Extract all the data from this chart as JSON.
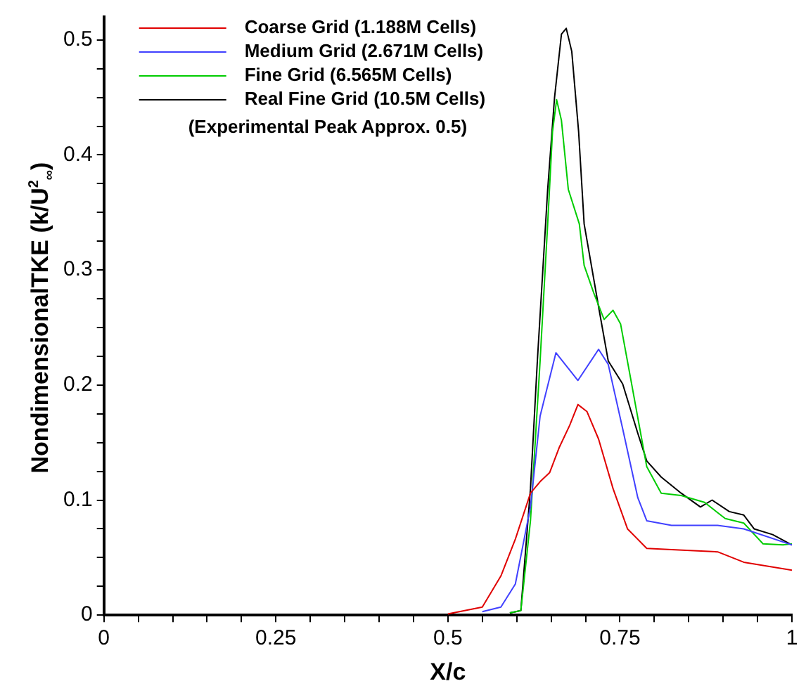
{
  "chart_data": {
    "type": "line",
    "xlabel": "X/c",
    "ylabel": "NondimensionalTKE (k/U$^{2}$$_{∞}$)",
    "xlim": [
      0,
      1
    ],
    "ylim": [
      0,
      0.52
    ],
    "xticks": [
      0,
      {
        "value": 0.05,
        "label": null
      },
      {
        "value": 0.1,
        "label": null
      },
      {
        "value": 0.15,
        "label": null
      },
      {
        "value": 0.2,
        "label": null
      },
      0.25,
      {
        "value": 0.3,
        "label": null
      },
      {
        "value": 0.35,
        "label": null
      },
      {
        "value": 0.4,
        "label": null
      },
      {
        "value": 0.45,
        "label": null
      },
      0.5,
      {
        "value": 0.55,
        "label": null
      },
      {
        "value": 0.6,
        "label": null
      },
      {
        "value": 0.65,
        "label": null
      },
      {
        "value": 0.7,
        "label": null
      },
      0.75,
      {
        "value": 0.8,
        "label": null
      },
      {
        "value": 0.85,
        "label": null
      },
      {
        "value": 0.9,
        "label": null
      },
      {
        "value": 0.95,
        "label": null
      },
      1
    ],
    "yticks": [
      0,
      {
        "value": 0.025,
        "label": null
      },
      {
        "value": 0.05,
        "label": null
      },
      {
        "value": 0.075,
        "label": null
      },
      0.1,
      {
        "value": 0.125,
        "label": null
      },
      {
        "value": 0.15,
        "label": null
      },
      {
        "value": 0.175,
        "label": null
      },
      0.2,
      {
        "value": 0.225,
        "label": null
      },
      {
        "value": 0.25,
        "label": null
      },
      {
        "value": 0.275,
        "label": null
      },
      0.3,
      {
        "value": 0.325,
        "label": null
      },
      {
        "value": 0.35,
        "label": null
      },
      {
        "value": 0.375,
        "label": null
      },
      0.4,
      {
        "value": 0.425,
        "label": null
      },
      {
        "value": 0.45,
        "label": null
      },
      {
        "value": 0.475,
        "label": null
      },
      0.5
    ],
    "grid": false,
    "legend": "top left",
    "marker": "none",
    "line_style": "solid",
    "annotations": [
      "(Experimental Peak Approx. 0.5)"
    ],
    "series": [
      {
        "name": "Coarse Grid (1.188M Cells)",
        "color": "#e00000",
        "x": [
          0.5,
          0.55,
          0.577,
          0.598,
          0.62,
          0.634,
          0.648,
          0.662,
          0.677,
          0.689,
          0.702,
          0.719,
          0.74,
          0.761,
          0.789,
          0.825,
          0.892,
          0.93,
          1
        ],
        "values": [
          0.001,
          0.007,
          0.034,
          0.066,
          0.106,
          0.116,
          0.124,
          0.146,
          0.165,
          0.183,
          0.177,
          0.153,
          0.11,
          0.075,
          0.058,
          0.057,
          0.055,
          0.046,
          0.039
        ]
      },
      {
        "name": "Medium Grid (2.671M Cells)",
        "color": "#4040ff",
        "x": [
          0.55,
          0.577,
          0.598,
          0.62,
          0.634,
          0.657,
          0.689,
          0.719,
          0.733,
          0.754,
          0.776,
          0.789,
          0.825,
          0.892,
          0.93,
          1
        ],
        "values": [
          0.003,
          0.007,
          0.027,
          0.094,
          0.173,
          0.228,
          0.204,
          0.231,
          0.218,
          0.162,
          0.102,
          0.082,
          0.078,
          0.078,
          0.075,
          0.061
        ]
      },
      {
        "name": "Fine Grid (6.565M Cells)",
        "color": "#00cc00",
        "x": [
          0.59,
          0.606,
          0.62,
          0.634,
          0.645,
          0.652,
          0.658,
          0.665,
          0.675,
          0.691,
          0.698,
          0.712,
          0.727,
          0.74,
          0.751,
          0.767,
          0.789,
          0.81,
          0.839,
          0.873,
          0.903,
          0.93,
          0.958,
          0.987,
          1
        ],
        "values": [
          0.002,
          0.004,
          0.082,
          0.221,
          0.34,
          0.42,
          0.448,
          0.43,
          0.37,
          0.34,
          0.304,
          0.28,
          0.257,
          0.265,
          0.253,
          0.201,
          0.129,
          0.106,
          0.104,
          0.098,
          0.084,
          0.08,
          0.062,
          0.061,
          0.062
        ]
      },
      {
        "name": "Real Fine Grid (10.5M Cells)",
        "color": "#000000",
        "x": [
          0.59,
          0.606,
          0.62,
          0.63,
          0.645,
          0.655,
          0.665,
          0.672,
          0.68,
          0.69,
          0.698,
          0.719,
          0.733,
          0.754,
          0.776,
          0.789,
          0.81,
          0.839,
          0.867,
          0.884,
          0.909,
          0.93,
          0.945,
          0.972,
          1
        ],
        "values": [
          0.002,
          0.004,
          0.11,
          0.221,
          0.37,
          0.45,
          0.505,
          0.51,
          0.49,
          0.42,
          0.34,
          0.268,
          0.221,
          0.201,
          0.158,
          0.134,
          0.12,
          0.106,
          0.094,
          0.1,
          0.09,
          0.087,
          0.075,
          0.07,
          0.061
        ]
      }
    ]
  }
}
